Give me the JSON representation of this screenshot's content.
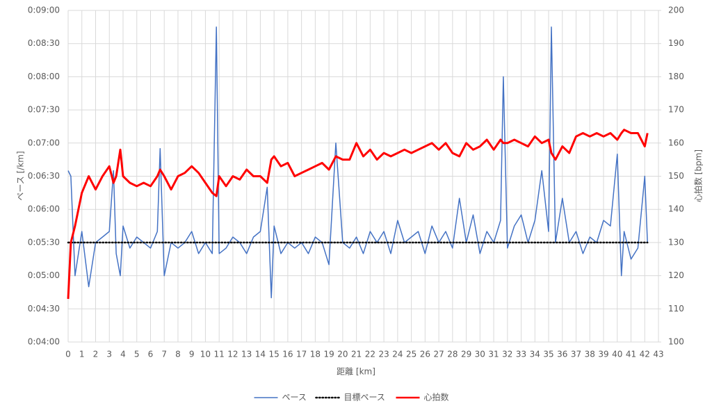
{
  "chart_data": {
    "type": "line",
    "x_label": "距離 [km]",
    "y_label": "ペース [/km]",
    "y2_label": "心拍数 [bpm]",
    "x": [
      0,
      0.2,
      0.5,
      1,
      1.5,
      2,
      2.5,
      3,
      3.3,
      3.5,
      3.8,
      4,
      4.5,
      5,
      5.5,
      6,
      6.5,
      6.7,
      7,
      7.5,
      8,
      8.5,
      9,
      9.5,
      10,
      10.5,
      10.8,
      11,
      11.5,
      12,
      12.5,
      13,
      13.5,
      14,
      14.5,
      14.8,
      15,
      15.5,
      16,
      16.5,
      17,
      17.5,
      18,
      18.5,
      19,
      19.5,
      20,
      20.5,
      21,
      21.5,
      22,
      22.5,
      23,
      23.5,
      24,
      24.5,
      25,
      25.5,
      26,
      26.5,
      27,
      27.5,
      28,
      28.5,
      29,
      29.5,
      30,
      30.5,
      31,
      31.5,
      31.7,
      32,
      32.5,
      33,
      33.5,
      34,
      34.5,
      35,
      35.2,
      35.5,
      36,
      36.5,
      37,
      37.5,
      38,
      38.5,
      39,
      39.5,
      40,
      40.3,
      40.5,
      41,
      41.5,
      42,
      42.2
    ],
    "series": [
      {
        "name": "ペース",
        "color": "#4472c4",
        "width": 1.5,
        "dotted": false,
        "values": [
          395,
          390,
          300,
          340,
          290,
          330,
          335,
          340,
          395,
          320,
          300,
          345,
          325,
          335,
          330,
          325,
          340,
          415,
          300,
          330,
          325,
          330,
          340,
          320,
          330,
          320,
          525,
          320,
          325,
          335,
          330,
          320,
          335,
          340,
          380,
          280,
          345,
          320,
          330,
          325,
          330,
          320,
          335,
          330,
          310,
          420,
          330,
          325,
          335,
          320,
          340,
          330,
          340,
          320,
          350,
          330,
          335,
          340,
          320,
          345,
          330,
          340,
          325,
          370,
          330,
          355,
          320,
          340,
          330,
          350,
          480,
          325,
          345,
          355,
          330,
          350,
          395,
          340,
          525,
          330,
          370,
          330,
          340,
          320,
          335,
          330,
          350,
          345,
          410,
          300,
          340,
          315,
          325,
          390,
          330
        ]
      },
      {
        "name": "目標ペース",
        "color": "#000000",
        "width": 2.5,
        "dotted": true,
        "values": [
          330,
          330,
          330,
          330,
          330,
          330,
          330,
          330,
          330,
          330,
          330,
          330,
          330,
          330,
          330,
          330,
          330,
          330,
          330,
          330,
          330,
          330,
          330,
          330,
          330,
          330,
          330,
          330,
          330,
          330,
          330,
          330,
          330,
          330,
          330,
          330,
          330,
          330,
          330,
          330,
          330,
          330,
          330,
          330,
          330,
          330,
          330,
          330,
          330,
          330,
          330,
          330,
          330,
          330,
          330,
          330,
          330,
          330,
          330,
          330,
          330,
          330,
          330,
          330,
          330,
          330,
          330,
          330,
          330,
          330,
          330,
          330,
          330,
          330,
          330,
          330,
          330,
          330,
          330,
          330,
          330,
          330,
          330,
          330,
          330,
          330,
          330,
          330,
          330,
          330,
          330,
          330,
          330,
          330,
          330
        ]
      },
      {
        "name": "心拍数",
        "color": "#ff0000",
        "width": 3,
        "dotted": false,
        "axis": "y2",
        "values": [
          113,
          130,
          135,
          145,
          150,
          146,
          150,
          153,
          148,
          150,
          158,
          150,
          148,
          147,
          148,
          147,
          150,
          152,
          150,
          146,
          150,
          151,
          153,
          151,
          148,
          145,
          144,
          150,
          147,
          150,
          149,
          152,
          150,
          150,
          148,
          155,
          156,
          153,
          154,
          150,
          151,
          152,
          153,
          154,
          152,
          156,
          155,
          155,
          160,
          156,
          158,
          155,
          157,
          156,
          157,
          158,
          157,
          158,
          159,
          160,
          158,
          160,
          157,
          156,
          160,
          158,
          159,
          161,
          158,
          161,
          160,
          160,
          161,
          160,
          159,
          162,
          160,
          161,
          157,
          155,
          159,
          157,
          162,
          163,
          162,
          163,
          162,
          163,
          161,
          163,
          164,
          163,
          163,
          159,
          163
        ]
      }
    ],
    "xlim": [
      0,
      43
    ],
    "xticks": [
      0,
      1,
      2,
      3,
      4,
      5,
      6,
      7,
      8,
      9,
      10,
      11,
      12,
      13,
      14,
      15,
      16,
      17,
      18,
      19,
      20,
      21,
      22,
      23,
      24,
      25,
      26,
      27,
      28,
      29,
      30,
      31,
      32,
      33,
      34,
      35,
      36,
      37,
      38,
      39,
      40,
      41,
      42,
      43
    ],
    "ylim": [
      240,
      540
    ],
    "yticks": [
      {
        "value": 240,
        "label": "0:04:00"
      },
      {
        "value": 270,
        "label": "0:04:30"
      },
      {
        "value": 300,
        "label": "0:05:00"
      },
      {
        "value": 330,
        "label": "0:05:30"
      },
      {
        "value": 360,
        "label": "0:06:00"
      },
      {
        "value": 390,
        "label": "0:06:30"
      },
      {
        "value": 420,
        "label": "0:07:00"
      },
      {
        "value": 450,
        "label": "0:07:30"
      },
      {
        "value": 480,
        "label": "0:08:00"
      },
      {
        "value": 510,
        "label": "0:08:30"
      },
      {
        "value": 540,
        "label": "0:09:00"
      }
    ],
    "y2lim": [
      100,
      200
    ],
    "y2ticks": [
      100,
      110,
      120,
      130,
      140,
      150,
      160,
      170,
      180,
      190,
      200
    ],
    "grid": true,
    "legend": "bottom"
  }
}
